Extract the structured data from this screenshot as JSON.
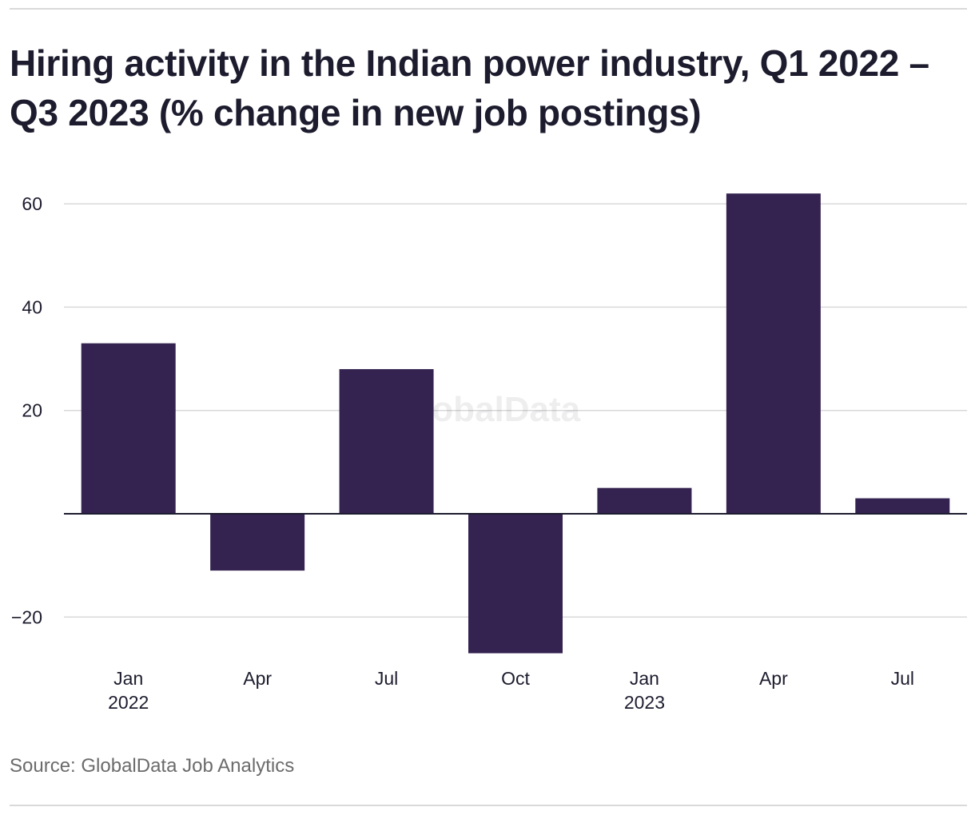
{
  "title": "Hiring activity in the Indian power industry, Q1 2022 – Q3 2023 (% change in new job postings)",
  "source": "Source: GlobalData Job Analytics",
  "watermark": "GlobalData",
  "colors": {
    "bar": "#342350",
    "grid": "#d9d9d9",
    "zero_line": "#1c1c2e",
    "text": "#1c1c2e",
    "source_text": "#6b6b6b"
  },
  "chart_data": {
    "type": "bar",
    "categories": [
      "Jan 2022",
      "Apr 2022",
      "Jul 2022",
      "Oct 2022",
      "Jan 2023",
      "Apr 2023",
      "Jul 2023"
    ],
    "tick_labels": [
      {
        "line1": "Jan",
        "line2": "2022"
      },
      {
        "line1": "Apr",
        "line2": ""
      },
      {
        "line1": "Jul",
        "line2": ""
      },
      {
        "line1": "Oct",
        "line2": ""
      },
      {
        "line1": "Jan",
        "line2": "2023"
      },
      {
        "line1": "Apr",
        "line2": ""
      },
      {
        "line1": "Jul",
        "line2": ""
      }
    ],
    "values": [
      33,
      -11,
      28,
      -27,
      5,
      62,
      3
    ],
    "yticks": [
      60,
      40,
      20,
      -20
    ],
    "ytick_labels": [
      "60",
      "40",
      "20",
      "−20"
    ],
    "ylim": [
      -27,
      62
    ],
    "xlabel": "",
    "ylabel": "",
    "grid": true,
    "legend": "none"
  }
}
